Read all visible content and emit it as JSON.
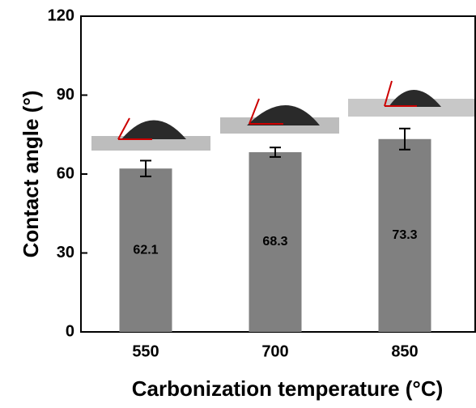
{
  "chart_data": {
    "type": "bar",
    "xlabel": "Carbonization temperature (°C)",
    "ylabel": "Contact angle (°)",
    "categories": [
      "550",
      "700",
      "850"
    ],
    "values": [
      62.1,
      68.3,
      73.3
    ],
    "errors": [
      3,
      1.8,
      4
    ],
    "color": "#808080",
    "ylim": [
      0,
      120
    ],
    "yticks": [
      0,
      30,
      60,
      90,
      120
    ]
  }
}
